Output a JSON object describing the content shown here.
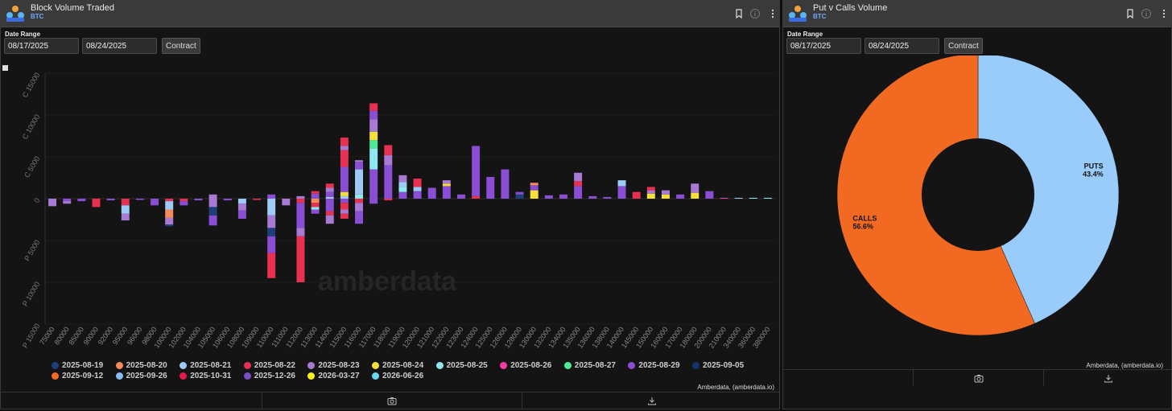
{
  "left_panel": {
    "title": "Block Volume Traded",
    "subtitle": "BTC",
    "date_range_label": "Date Range",
    "start_date": "08/17/2025",
    "end_date": "08/24/2025",
    "contract_button": "Contract",
    "watermark": "amberdata",
    "credit": "Amberdata, (amberdata.io)"
  },
  "right_panel": {
    "title": "Put v Calls Volume",
    "subtitle": "BTC",
    "date_range_label": "Date Range",
    "start_date": "08/17/2025",
    "end_date": "08/24/2025",
    "contract_button": "Contract",
    "credit": "Amberdata, (amberdata.io)"
  },
  "icons": {
    "bookmark": "bookmark-icon",
    "info": "info-icon",
    "menu": "more-vertical-icon",
    "camera": "camera-icon",
    "download": "download-icon",
    "logo": "amberdata-logo-icon"
  },
  "chart_data": [
    {
      "type": "bar",
      "stacked": true,
      "ylim": [
        -15000,
        15000
      ],
      "y_ticks": [
        {
          "value": 15000,
          "label": "C 15000"
        },
        {
          "value": 10000,
          "label": "C 10000"
        },
        {
          "value": 5000,
          "label": "C 5000"
        },
        {
          "value": 0,
          "label": "0"
        },
        {
          "value": -5000,
          "label": "P 5000"
        },
        {
          "value": -10000,
          "label": "P 10000"
        },
        {
          "value": -15000,
          "label": "P 15000"
        }
      ],
      "categories": [
        "75000",
        "80000",
        "85000",
        "90000",
        "92000",
        "95000",
        "96000",
        "98000",
        "100000",
        "102000",
        "104000",
        "105000",
        "106000",
        "108000",
        "109000",
        "110000",
        "111000",
        "112000",
        "113000",
        "114000",
        "115000",
        "116000",
        "117000",
        "118000",
        "119000",
        "120000",
        "121000",
        "122000",
        "123000",
        "124000",
        "125000",
        "126000",
        "128000",
        "130000",
        "132000",
        "134000",
        "135000",
        "136000",
        "138000",
        "140000",
        "145000",
        "150000",
        "160000",
        "170000",
        "180000",
        "200000",
        "210000",
        "340000",
        "360000",
        "380000"
      ],
      "series": [
        {
          "name": "2025-08-19",
          "color": "#1f3f7a"
        },
        {
          "name": "2025-08-20",
          "color": "#f58a5a"
        },
        {
          "name": "2025-08-21",
          "color": "#9ecbf5"
        },
        {
          "name": "2025-08-22",
          "color": "#e83050"
        },
        {
          "name": "2025-08-23",
          "color": "#a87ad4"
        },
        {
          "name": "2025-08-24",
          "color": "#f5e03a"
        },
        {
          "name": "2025-08-25",
          "color": "#8ee8f0"
        },
        {
          "name": "2025-08-26",
          "color": "#f53aa8"
        },
        {
          "name": "2025-08-27",
          "color": "#4ee89a"
        },
        {
          "name": "2025-08-29",
          "color": "#8a4ed4"
        },
        {
          "name": "2025-09-05",
          "color": "#15356a"
        },
        {
          "name": "2025-09-12",
          "color": "#f56a28"
        },
        {
          "name": "2025-09-26",
          "color": "#8abcf0"
        },
        {
          "name": "2025-10-31",
          "color": "#e8184a"
        },
        {
          "name": "2025-12-26",
          "color": "#7a4ec4"
        },
        {
          "name": "2026-03-27",
          "color": "#f5f01a"
        },
        {
          "name": "2026-06-26",
          "color": "#6ad8ee"
        }
      ],
      "stacks": [
        {
          "calls": [],
          "puts": [
            [
              "2025-08-23",
              900
            ]
          ]
        },
        {
          "calls": [],
          "puts": [
            [
              "2025-08-29",
              300
            ],
            [
              "2025-08-23",
              300
            ]
          ]
        },
        {
          "calls": [],
          "puts": [
            [
              "2025-08-29",
              300
            ]
          ]
        },
        {
          "calls": [],
          "puts": [
            [
              "2025-08-22",
              1000
            ]
          ]
        },
        {
          "calls": [],
          "puts": [
            [
              "2025-08-29",
              200
            ]
          ]
        },
        {
          "calls": [],
          "puts": [
            [
              "2025-08-22",
              800
            ],
            [
              "2025-08-21",
              1000
            ],
            [
              "2025-08-23",
              800
            ]
          ]
        },
        {
          "calls": [],
          "puts": [
            [
              "2025-08-29",
              150
            ]
          ]
        },
        {
          "calls": [],
          "puts": [
            [
              "2025-08-29",
              800
            ]
          ]
        },
        {
          "calls": [],
          "puts": [
            [
              "2025-08-22",
              300
            ],
            [
              "2025-08-21",
              1000
            ],
            [
              "2025-08-20",
              1000
            ],
            [
              "2025-08-23",
              800
            ],
            [
              "2025-08-19",
              200
            ]
          ]
        },
        {
          "calls": [],
          "puts": [
            [
              "2025-08-22",
              300
            ],
            [
              "2025-08-29",
              500
            ]
          ]
        },
        {
          "calls": [],
          "puts": [
            [
              "2025-08-29",
              200
            ]
          ]
        },
        {
          "calls": [
            [
              "2025-08-23",
              500
            ]
          ],
          "puts": [
            [
              "2025-08-23",
              1000
            ],
            [
              "2025-08-19",
              1000
            ],
            [
              "2025-08-29",
              1200
            ]
          ]
        },
        {
          "calls": [],
          "puts": [
            [
              "2025-08-29",
              200
            ]
          ]
        },
        {
          "calls": [],
          "puts": [
            [
              "2025-08-21",
              600
            ],
            [
              "2025-08-23",
              800
            ],
            [
              "2025-08-29",
              1000
            ]
          ]
        },
        {
          "calls": [],
          "puts": [
            [
              "2025-08-22",
              150
            ]
          ]
        },
        {
          "calls": [
            [
              "2025-08-29",
              500
            ]
          ],
          "puts": [
            [
              "2025-08-21",
              2000
            ],
            [
              "2025-08-23",
              1500
            ],
            [
              "2025-08-19",
              1000
            ],
            [
              "2025-08-29",
              2000
            ],
            [
              "2025-08-22",
              3000
            ]
          ]
        },
        {
          "calls": [],
          "puts": [
            [
              "2025-08-23",
              800
            ]
          ]
        },
        {
          "calls": [
            [
              "2025-08-23",
              300
            ]
          ],
          "puts": [
            [
              "2025-08-22",
              500
            ],
            [
              "2025-08-29",
              3000
            ],
            [
              "2025-08-23",
              1000
            ],
            [
              "2025-08-22",
              5500
            ]
          ]
        },
        {
          "calls": [
            [
              "2025-08-29",
              600
            ],
            [
              "2025-08-22",
              300
            ]
          ],
          "puts": [
            [
              "2025-08-20",
              500
            ],
            [
              "2025-08-22",
              500
            ],
            [
              "2025-08-25",
              300
            ],
            [
              "2025-08-29",
              500
            ]
          ]
        },
        {
          "calls": [
            [
              "2025-08-21",
              200
            ],
            [
              "2025-08-29",
              600
            ],
            [
              "2025-08-23",
              500
            ],
            [
              "2025-08-22",
              500
            ]
          ],
          "puts": [
            [
              "2025-08-29",
              1500
            ],
            [
              "2025-08-22",
              500
            ],
            [
              "2025-08-23",
              1000
            ]
          ]
        },
        {
          "calls": [
            [
              "2025-08-21",
              300
            ],
            [
              "2025-08-24",
              500
            ],
            [
              "2025-08-29",
              3000
            ],
            [
              "2025-08-22",
              2000
            ],
            [
              "2025-08-23",
              500
            ],
            [
              "2025-08-22",
              1000
            ]
          ],
          "puts": [
            [
              "2025-08-29",
              500
            ],
            [
              "2025-08-22",
              800
            ],
            [
              "2025-08-23",
              500
            ],
            [
              "2025-08-22",
              600
            ]
          ]
        },
        {
          "calls": [
            [
              "2025-08-25",
              500
            ],
            [
              "2025-08-21",
              3000
            ],
            [
              "2025-08-29",
              900
            ],
            [
              "2025-08-23",
              200
            ]
          ],
          "puts": [
            [
              "2025-08-22",
              500
            ],
            [
              "2025-08-23",
              1000
            ],
            [
              "2025-08-29",
              1500
            ]
          ]
        },
        {
          "calls": [
            [
              "2025-08-29",
              3500
            ],
            [
              "2025-08-25",
              2500
            ],
            [
              "2025-08-27",
              1000
            ],
            [
              "2025-08-24",
              1000
            ],
            [
              "2025-08-23",
              1500
            ],
            [
              "2025-08-29",
              1000
            ],
            [
              "2025-08-22",
              900
            ]
          ],
          "puts": [
            [
              "2025-08-29",
              600
            ]
          ]
        },
        {
          "calls": [
            [
              "2025-08-29",
              4000
            ],
            [
              "2025-08-23",
              1200
            ],
            [
              "2025-08-22",
              1200
            ]
          ],
          "puts": [
            [
              "2025-08-22",
              200
            ]
          ]
        },
        {
          "calls": [
            [
              "2025-08-29",
              800
            ],
            [
              "2025-08-25",
              600
            ],
            [
              "2025-08-21",
              600
            ],
            [
              "2025-08-23",
              800
            ]
          ],
          "puts": []
        },
        {
          "calls": [
            [
              "2025-08-29",
              900
            ],
            [
              "2025-08-21",
              500
            ],
            [
              "2025-08-22",
              1000
            ]
          ],
          "puts": []
        },
        {
          "calls": [
            [
              "2025-08-29",
              1300
            ]
          ],
          "puts": []
        },
        {
          "calls": [
            [
              "2025-08-29",
              1500
            ],
            [
              "2025-08-24",
              300
            ],
            [
              "2025-08-23",
              400
            ]
          ],
          "puts": []
        },
        {
          "calls": [
            [
              "2025-08-29",
              500
            ]
          ],
          "puts": []
        },
        {
          "calls": [
            [
              "2025-08-22",
              300
            ],
            [
              "2025-08-29",
              6000
            ]
          ],
          "puts": []
        },
        {
          "calls": [
            [
              "2025-08-29",
              2600
            ]
          ],
          "puts": []
        },
        {
          "calls": [
            [
              "2025-08-29",
              3500
            ]
          ],
          "puts": []
        },
        {
          "calls": [
            [
              "2025-08-19",
              500
            ],
            [
              "2025-08-29",
              300
            ]
          ],
          "puts": []
        },
        {
          "calls": [
            [
              "2025-08-24",
              1000
            ],
            [
              "2025-08-29",
              600
            ],
            [
              "2025-08-20",
              300
            ]
          ],
          "puts": []
        },
        {
          "calls": [
            [
              "2025-08-29",
              400
            ]
          ],
          "puts": []
        },
        {
          "calls": [
            [
              "2025-08-29",
              500
            ]
          ],
          "puts": []
        },
        {
          "calls": [
            [
              "2025-08-29",
              1500
            ],
            [
              "2025-08-22",
              600
            ],
            [
              "2025-08-23",
              1000
            ]
          ],
          "puts": []
        },
        {
          "calls": [
            [
              "2025-08-29",
              300
            ]
          ],
          "puts": []
        },
        {
          "calls": [
            [
              "2025-08-29",
              200
            ]
          ],
          "puts": []
        },
        {
          "calls": [
            [
              "2025-08-29",
              1500
            ],
            [
              "2025-08-21",
              700
            ]
          ],
          "puts": []
        },
        {
          "calls": [
            [
              "2025-08-22",
              800
            ]
          ],
          "puts": []
        },
        {
          "calls": [
            [
              "2025-08-24",
              600
            ],
            [
              "2025-08-23",
              400
            ],
            [
              "2025-08-22",
              400
            ]
          ],
          "puts": []
        },
        {
          "calls": [
            [
              "2025-08-24",
              500
            ],
            [
              "2025-08-23",
              500
            ]
          ],
          "puts": []
        },
        {
          "calls": [
            [
              "2025-08-29",
              500
            ]
          ],
          "puts": []
        },
        {
          "calls": [
            [
              "2025-08-24",
              700
            ],
            [
              "2025-08-23",
              1100
            ]
          ],
          "puts": []
        },
        {
          "calls": [
            [
              "2025-08-29",
              900
            ]
          ],
          "puts": []
        },
        {
          "calls": [
            [
              "2025-08-26",
              100
            ]
          ],
          "puts": []
        },
        {
          "calls": [
            [
              "2025-08-21",
              100
            ]
          ],
          "puts": []
        },
        {
          "calls": [
            [
              "2025-08-25",
              100
            ]
          ],
          "puts": []
        },
        {
          "calls": [
            [
              "2025-08-25",
              100
            ]
          ],
          "puts": []
        }
      ]
    },
    {
      "type": "pie",
      "donut": true,
      "slices": [
        {
          "name": "PUTS",
          "value": 43.4,
          "label": "43.4%",
          "color": "#99ccfa"
        },
        {
          "name": "CALLS",
          "value": 56.6,
          "label": "56.6%",
          "color": "#f26a21"
        }
      ]
    }
  ]
}
